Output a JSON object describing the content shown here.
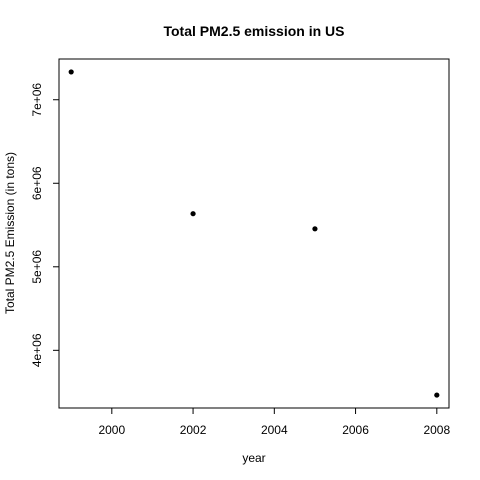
{
  "chart_data": {
    "type": "scatter",
    "title": "Total PM2.5 emission in US",
    "xlabel": "year",
    "ylabel": "Total PM2.5 Emission (in tons)",
    "x": [
      1999,
      2002,
      2005,
      2008
    ],
    "y": [
      7332967,
      5635780,
      5454703,
      3464206
    ],
    "xlim": [
      1998.7,
      2008.3
    ],
    "ylim": [
      3309455,
      7487718
    ],
    "xticks": [
      2000,
      2002,
      2004,
      2006,
      2008
    ],
    "xtick_labels": [
      "2000",
      "2002",
      "2004",
      "2006",
      "2008"
    ],
    "yticks": [
      4000000,
      5000000,
      6000000,
      7000000
    ],
    "ytick_labels": [
      "4e+06",
      "5e+06",
      "6e+06",
      "7e+06"
    ],
    "grid": false,
    "point_color": "#000000"
  }
}
